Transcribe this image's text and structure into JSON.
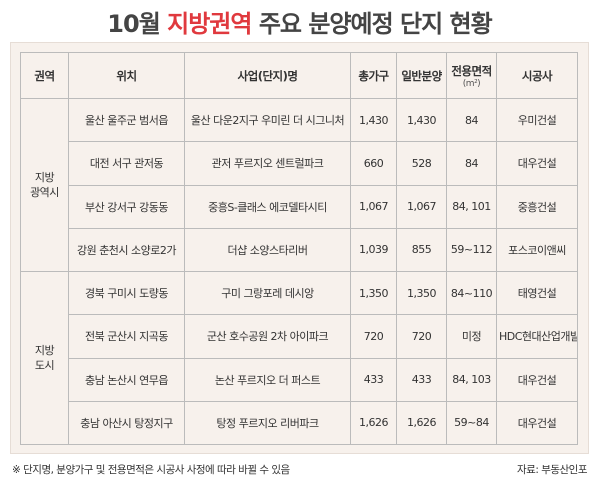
{
  "title": {
    "prefix": "10월",
    "accent": "지방권역",
    "suffix": "주요 분양예정 단지 현황"
  },
  "table": {
    "headers": {
      "region": "권역",
      "location": "위치",
      "project": "사업(단지)명",
      "total": "총가구",
      "general": "일반분양",
      "area": "전용면적",
      "area_unit": "(m²)",
      "builder": "시공사"
    },
    "groups": [
      {
        "region_line1": "지방",
        "region_line2": "광역시",
        "rows": [
          {
            "location": "울산 울주군 범서읍",
            "project": "울산 다운2지구 우미린 더 시그니처",
            "total": "1,430",
            "general": "1,430",
            "area": "84",
            "builder": "우미건설"
          },
          {
            "location": "대전 서구 관저동",
            "project": "관저 푸르지오 센트럴파크",
            "total": "660",
            "general": "528",
            "area": "84",
            "builder": "대우건설"
          },
          {
            "location": "부산 강서구 강동동",
            "project": "중흥S-클래스 에코델타시티",
            "total": "1,067",
            "general": "1,067",
            "area": "84, 101",
            "builder": "중흥건설"
          },
          {
            "location": "강원 춘천시 소양로2가",
            "project": "더샵 소양스타리버",
            "total": "1,039",
            "general": "855",
            "area": "59~112",
            "builder": "포스코이앤씨"
          }
        ]
      },
      {
        "region_line1": "지방",
        "region_line2": "도시",
        "rows": [
          {
            "location": "경북 구미시 도량동",
            "project": "구미 그랑포레 데시앙",
            "total": "1,350",
            "general": "1,350",
            "area": "84~110",
            "builder": "태영건설"
          },
          {
            "location": "전북 군산시 지곡동",
            "project": "군산 호수공원 2차 아이파크",
            "total": "720",
            "general": "720",
            "area": "미정",
            "builder": "HDC현대산업개발"
          },
          {
            "location": "충남 논산시 연무읍",
            "project": "논산 푸르지오 더 퍼스트",
            "total": "433",
            "general": "433",
            "area": "84, 103",
            "builder": "대우건설"
          },
          {
            "location": "충남 아산시 탕정지구",
            "project": "탕정 푸르지오 리버파크",
            "total": "1,626",
            "general": "1,626",
            "area": "59~84",
            "builder": "대우건설"
          }
        ]
      }
    ]
  },
  "footer": {
    "note": "※ 단지명, 분양가구 및 전용면적은 시공사 사정에 따라 바뀔 수 있음",
    "source": "자료: 부동산인포"
  },
  "colors": {
    "accent": "#e0393e",
    "panel_bg": "#f7f1ec"
  }
}
